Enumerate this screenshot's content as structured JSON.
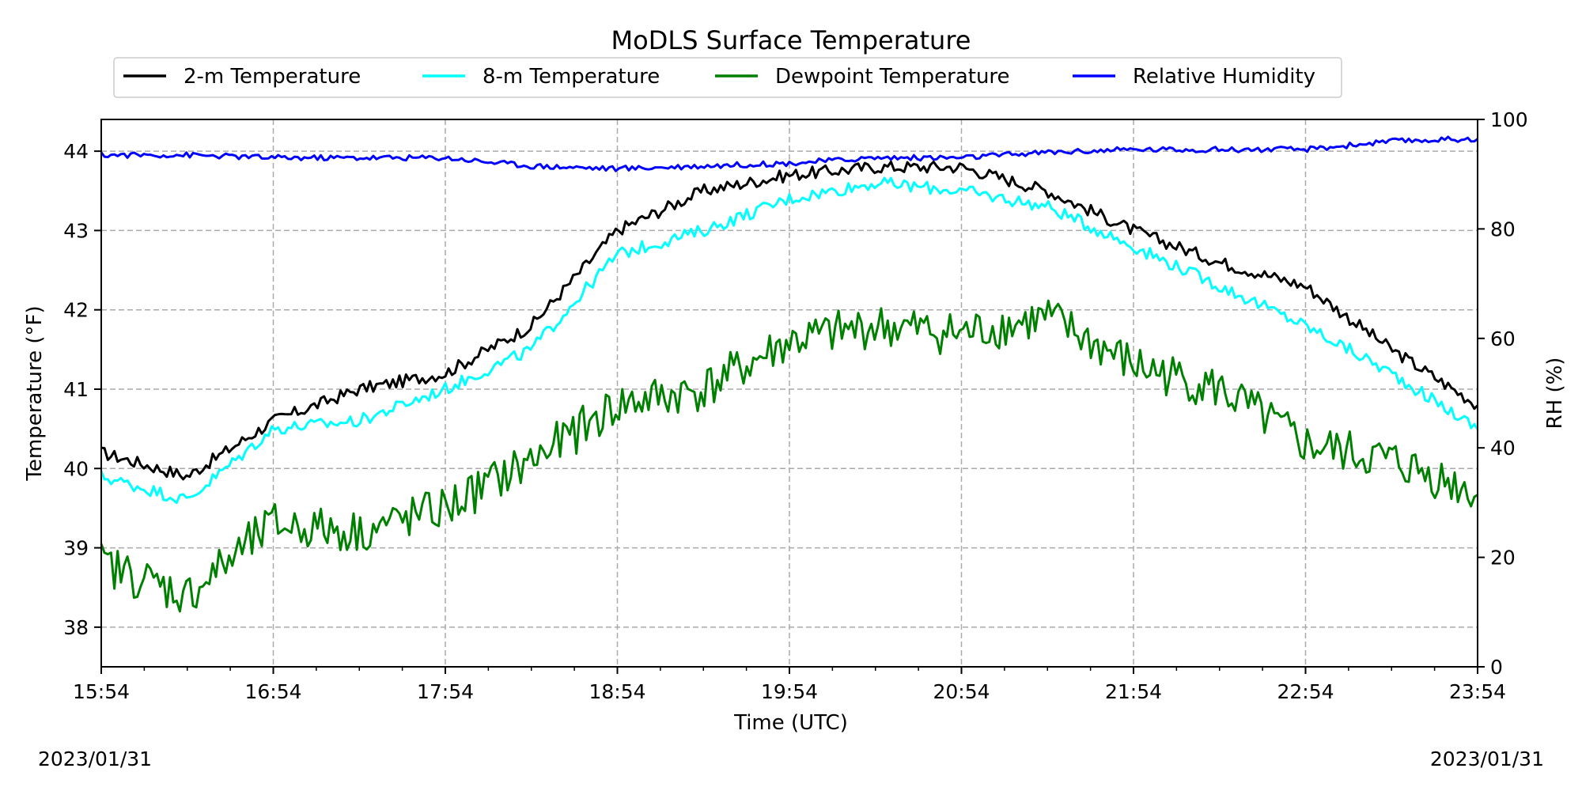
{
  "chart_data": {
    "type": "line",
    "title": "MoDLS Surface Temperature",
    "xlabel": "Time (UTC)",
    "ylabel": "Temperature (°F)",
    "ylabel_right": "RH (%)",
    "x_ticks": [
      "15:54",
      "16:54",
      "17:54",
      "18:54",
      "19:54",
      "20:54",
      "21:54",
      "22:54",
      "23:54"
    ],
    "x": [
      "15:54",
      "16:24",
      "16:54",
      "17:24",
      "17:54",
      "18:24",
      "18:54",
      "19:24",
      "19:54",
      "20:24",
      "20:54",
      "21:24",
      "21:54",
      "22:24",
      "22:54",
      "23:24",
      "23:54"
    ],
    "ylim": [
      37.5,
      44.4
    ],
    "ylim_right": [
      0,
      100
    ],
    "y_ticks": [
      38,
      39,
      40,
      41,
      42,
      43,
      44
    ],
    "y_ticks_right": [
      0,
      20,
      40,
      60,
      80,
      100
    ],
    "grid": true,
    "legend_position": "top-center",
    "series": [
      {
        "name": "2-m Temperature",
        "axis": "left",
        "color": "#000000",
        "values": [
          40.2,
          39.9,
          40.6,
          41.0,
          41.2,
          41.8,
          43.0,
          43.5,
          43.7,
          43.8,
          43.8,
          43.5,
          43.0,
          42.6,
          42.3,
          41.5,
          40.8
        ]
      },
      {
        "name": "8-m Temperature",
        "axis": "left",
        "color": "#00ffff",
        "values": [
          39.9,
          39.6,
          40.5,
          40.6,
          41.0,
          41.5,
          42.7,
          43.0,
          43.4,
          43.6,
          43.5,
          43.3,
          42.8,
          42.3,
          41.8,
          41.2,
          40.5
        ]
      },
      {
        "name": "Dewpoint Temperature",
        "axis": "left",
        "color": "#008000",
        "values": [
          38.8,
          38.4,
          39.3,
          39.2,
          39.5,
          40.1,
          40.8,
          41.0,
          41.6,
          41.8,
          41.7,
          41.9,
          41.3,
          41.0,
          40.3,
          40.1,
          39.7
        ]
      },
      {
        "name": "Relative Humidity",
        "axis": "right",
        "color": "#0000ff",
        "values": [
          93.5,
          93.5,
          93.0,
          93.0,
          93.0,
          91.5,
          91.0,
          91.5,
          92.0,
          93.0,
          93.0,
          94.0,
          94.5,
          94.5,
          94.5,
          96.0,
          96.5
        ]
      }
    ]
  },
  "footer": {
    "date_left": "2023/01/31",
    "date_right": "2023/01/31"
  }
}
